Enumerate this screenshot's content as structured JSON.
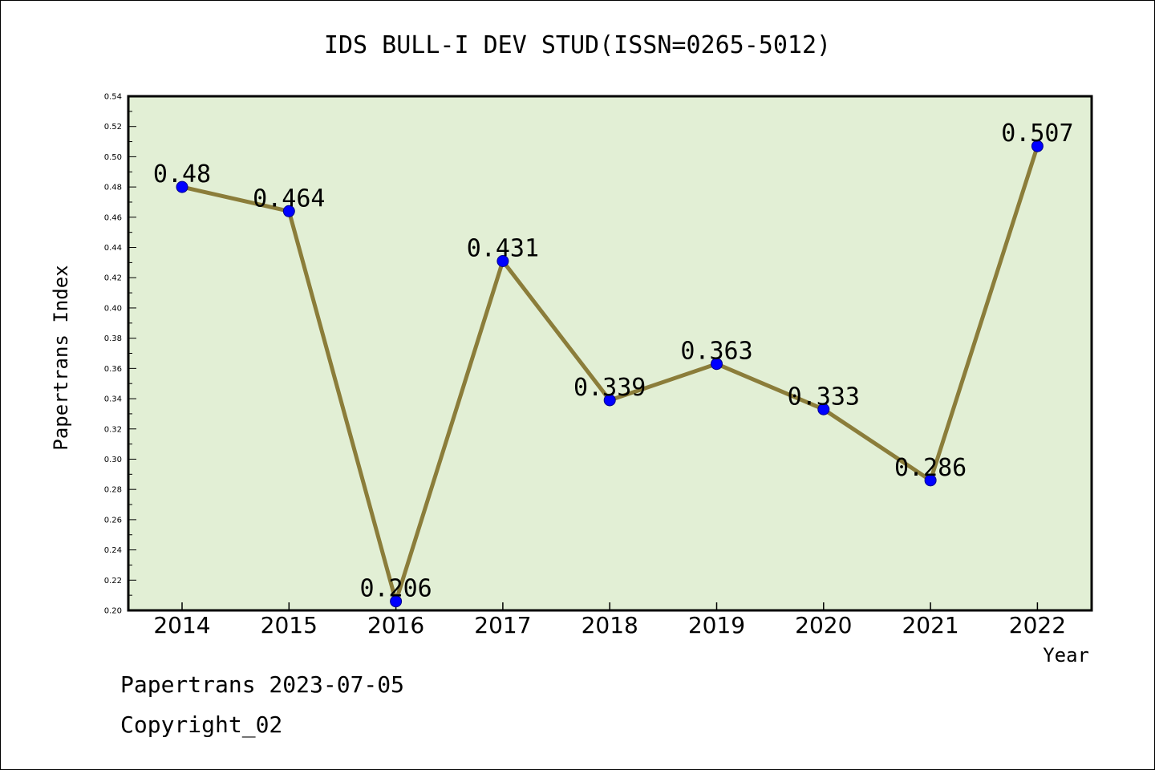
{
  "chart_data": {
    "type": "line",
    "title": "IDS BULL-I DEV STUD(ISSN=0265-5012)",
    "xlabel": "Year",
    "ylabel": "Papertrans Index",
    "categories": [
      "2014",
      "2015",
      "2016",
      "2017",
      "2018",
      "2019",
      "2020",
      "2021",
      "2022"
    ],
    "series": [
      {
        "values": [
          0.48,
          0.464,
          0.206,
          0.431,
          0.339,
          0.363,
          0.333,
          0.286,
          0.507
        ]
      }
    ],
    "data_labels": [
      "0.48",
      "0.464",
      "0.206",
      "0.431",
      "0.339",
      "0.363",
      "0.333",
      "0.286",
      "0.507"
    ],
    "ylim": [
      0.2,
      0.54
    ],
    "yticks": [
      "0.20",
      "0.22",
      "0.24",
      "0.26",
      "0.28",
      "0.30",
      "0.32",
      "0.34",
      "0.36",
      "0.38",
      "0.40",
      "0.42",
      "0.44",
      "0.46",
      "0.48",
      "0.50",
      "0.52",
      "0.54"
    ],
    "grid": false,
    "legend": "none",
    "colors": {
      "plot_background": "#e2efd5",
      "line": "#8b7d3a",
      "marker": "#0000ff"
    }
  },
  "footer": {
    "date_line": "Papertrans 2023-07-05",
    "copyright": "Copyright_02"
  }
}
